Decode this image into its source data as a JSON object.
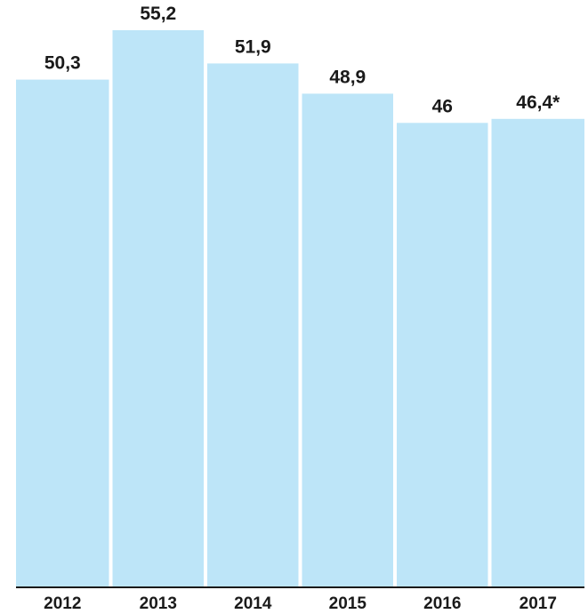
{
  "chart_data": {
    "type": "bar",
    "categories": [
      "2012",
      "2013",
      "2014",
      "2015",
      "2016",
      "2017"
    ],
    "values": [
      50.3,
      55.2,
      51.9,
      48.9,
      46,
      46.4
    ],
    "value_labels": [
      "50,3",
      "55,2",
      "51,9",
      "48,9",
      "46",
      "46,4*"
    ],
    "title": "",
    "xlabel": "",
    "ylabel": "",
    "ylim": [
      0,
      55.2
    ],
    "grid": false,
    "legend": "none",
    "colors": {
      "bar": "#bde5f8",
      "text": "#1a1a1a",
      "axis": "#1a1a1a"
    }
  }
}
